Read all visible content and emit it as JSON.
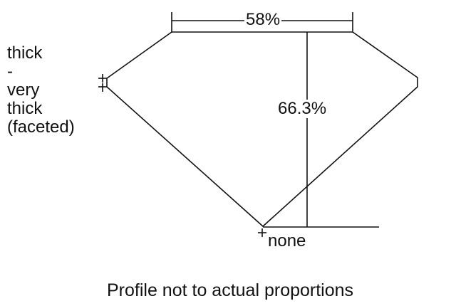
{
  "diagram": {
    "girdle_label_lines": [
      "thick",
      "-",
      "very",
      "thick",
      "(faceted)"
    ],
    "table_percent": "58%",
    "depth_percent": "66.3%",
    "culet_label": "none",
    "caption": "Profile not to actual proportions",
    "line_color": "#111111"
  }
}
